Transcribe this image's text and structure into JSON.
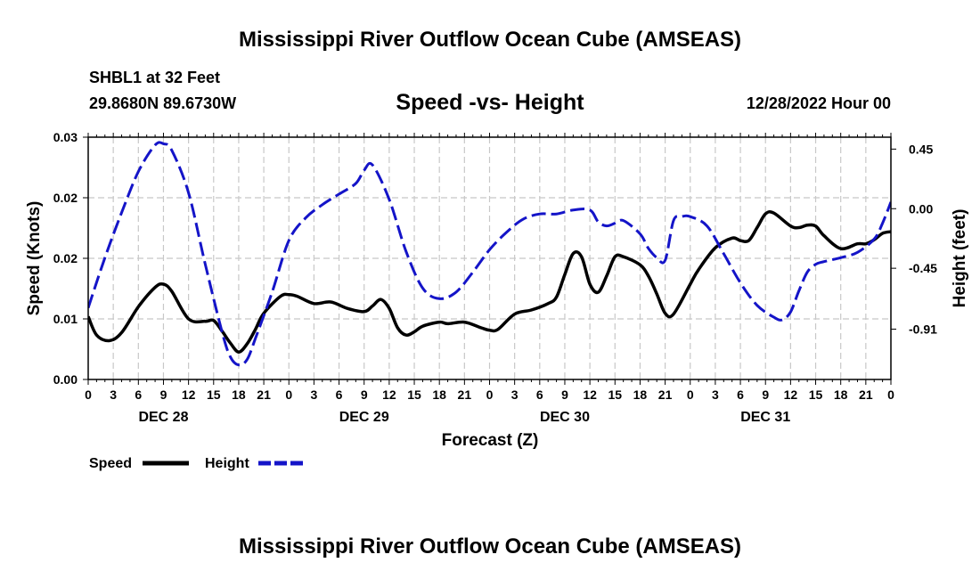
{
  "page": {
    "title": "Mississippi River Outflow Ocean Cube (AMSEAS)",
    "footer_title": "Mississippi River Outflow Ocean Cube (AMSEAS)",
    "station": "SHBL1 at 32 Feet",
    "coords": "29.8680N  89.6730W",
    "date": "12/28/2022 Hour 00"
  },
  "chart_data": {
    "type": "line",
    "title": "Speed -vs- Height",
    "xlabel": "Forecast (Z)",
    "ylabel": "Speed (Knots)",
    "y2label": "Height (feet)",
    "xlim": [
      0,
      96
    ],
    "ylim": [
      0,
      0.03
    ],
    "y2lim": [
      -1.29,
      0.54
    ],
    "y_ticks": [
      "0.00",
      "0.01",
      "0.02",
      "0.02",
      "0.03"
    ],
    "y_tick_values": [
      0,
      0.0075,
      0.015,
      0.0225,
      0.03
    ],
    "y2_ticks": [
      "-0.91",
      "-0.45",
      "0.00",
      "0.45"
    ],
    "y2_tick_values": [
      -0.91,
      -0.45,
      0.0,
      0.45
    ],
    "x_tick_labels": [
      "0",
      "3",
      "6",
      "9",
      "12",
      "15",
      "18",
      "21",
      "0",
      "3",
      "6",
      "9",
      "12",
      "15",
      "18",
      "21",
      "0",
      "3",
      "6",
      "9",
      "12",
      "15",
      "18",
      "21",
      "0",
      "3",
      "6",
      "9",
      "12",
      "15",
      "18",
      "21",
      "0"
    ],
    "day_labels": [
      {
        "hour": 9,
        "label": "DEC 28"
      },
      {
        "hour": 33,
        "label": "DEC 29"
      },
      {
        "hour": 57,
        "label": "DEC 30"
      },
      {
        "hour": 81,
        "label": "DEC 31"
      }
    ],
    "grid": true,
    "legend": "bottom-left",
    "series": [
      {
        "name": "Speed",
        "color": "#000000",
        "dash": "solid",
        "axis": "left",
        "x": [
          0,
          1,
          2.5,
          4,
          6,
          8,
          9,
          10,
          12,
          14,
          15,
          16,
          17,
          18,
          19,
          20,
          21,
          23,
          24,
          25,
          27,
          29,
          31,
          33,
          34,
          35,
          36,
          37,
          38,
          39,
          40,
          42,
          43,
          45,
          47,
          48,
          49,
          51,
          53,
          55,
          56,
          57,
          58,
          59,
          60,
          61,
          62,
          63,
          64,
          66,
          67,
          68,
          69,
          70,
          72,
          73,
          75,
          77,
          78,
          79,
          80,
          81,
          82,
          84,
          85,
          86,
          87,
          88,
          90,
          92,
          93,
          94,
          95,
          96
        ],
        "values": [
          0.0078,
          0.0055,
          0.0048,
          0.0058,
          0.009,
          0.0114,
          0.0118,
          0.0109,
          0.0075,
          0.0072,
          0.0073,
          0.006,
          0.0045,
          0.0034,
          0.0044,
          0.0062,
          0.0082,
          0.0103,
          0.0105,
          0.0103,
          0.0094,
          0.0096,
          0.0088,
          0.0084,
          0.0091,
          0.0099,
          0.0088,
          0.0064,
          0.0055,
          0.0059,
          0.0066,
          0.0071,
          0.0069,
          0.0071,
          0.0064,
          0.0061,
          0.0062,
          0.0081,
          0.0086,
          0.0094,
          0.0102,
          0.013,
          0.0156,
          0.0152,
          0.0118,
          0.0108,
          0.0128,
          0.0152,
          0.0152,
          0.0142,
          0.0128,
          0.0106,
          0.0082,
          0.0081,
          0.0118,
          0.0136,
          0.0163,
          0.0175,
          0.0172,
          0.0172,
          0.0188,
          0.0205,
          0.0206,
          0.019,
          0.0188,
          0.0191,
          0.019,
          0.0178,
          0.0162,
          0.0168,
          0.0168,
          0.0173,
          0.0181,
          0.0183
        ]
      },
      {
        "name": "Height",
        "color": "#1414c8",
        "dash": "dashed",
        "axis": "right",
        "x": [
          0,
          2,
          4,
          6,
          8,
          9,
          10,
          12,
          14,
          16,
          17,
          18,
          19,
          20,
          22,
          24,
          26,
          28,
          30,
          32,
          33,
          34,
          36,
          38,
          40,
          42,
          44,
          46,
          48,
          50,
          52,
          54,
          56,
          58,
          60,
          61,
          62,
          63,
          64,
          66,
          67,
          68,
          69,
          70,
          71,
          72,
          74,
          76,
          78,
          80,
          82,
          83,
          84,
          85,
          86,
          87,
          88,
          90,
          92,
          94,
          95,
          96
        ],
        "values": [
          -0.75,
          -0.37,
          -0.03,
          0.28,
          0.48,
          0.49,
          0.44,
          0.12,
          -0.42,
          -0.93,
          -1.12,
          -1.18,
          -1.14,
          -0.98,
          -0.63,
          -0.24,
          -0.07,
          0.03,
          0.11,
          0.19,
          0.29,
          0.33,
          0.07,
          -0.32,
          -0.6,
          -0.68,
          -0.63,
          -0.48,
          -0.31,
          -0.18,
          -0.08,
          -0.04,
          -0.04,
          -0.01,
          -0.01,
          -0.1,
          -0.13,
          -0.11,
          -0.09,
          -0.19,
          -0.3,
          -0.37,
          -0.39,
          -0.09,
          -0.06,
          -0.06,
          -0.13,
          -0.34,
          -0.56,
          -0.73,
          -0.82,
          -0.84,
          -0.78,
          -0.62,
          -0.48,
          -0.42,
          -0.4,
          -0.37,
          -0.33,
          -0.23,
          -0.11,
          0.05
        ]
      }
    ]
  }
}
